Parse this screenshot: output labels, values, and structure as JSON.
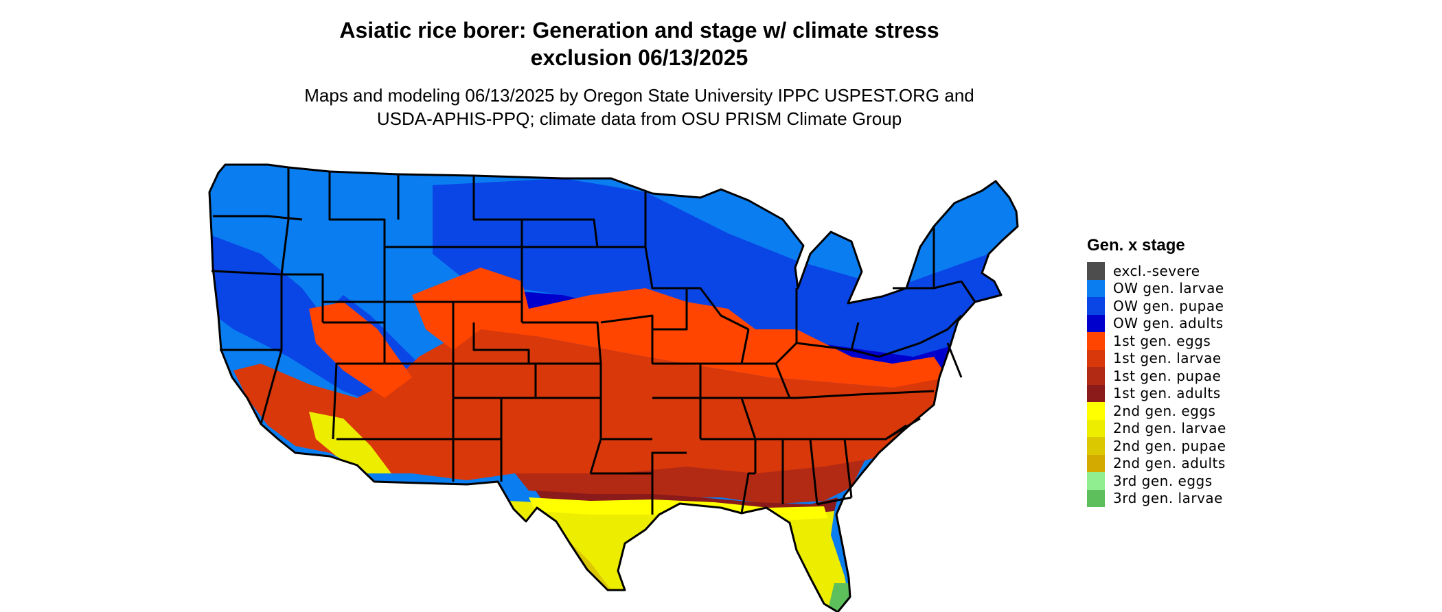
{
  "title_line1": "Asiatic rice borer: Generation and stage w/ climate stress",
  "title_line2": "exclusion 06/13/2025",
  "subtitle_line1": "Maps and modeling 06/13/2025 by Oregon State University IPPC USPEST.ORG and",
  "subtitle_line2": "USDA-APHIS-PPQ; climate data from OSU PRISM Climate Group",
  "legend": {
    "title": "Gen. x stage",
    "items": [
      {
        "label": "excl.-severe",
        "color": "#4d4d4d"
      },
      {
        "label": "OW gen. larvae",
        "color": "#0a7df0"
      },
      {
        "label": "OW gen. pupae",
        "color": "#0a46e6"
      },
      {
        "label": "OW gen. adults",
        "color": "#0000cc"
      },
      {
        "label": "1st gen. eggs",
        "color": "#ff4500"
      },
      {
        "label": "1st gen. larvae",
        "color": "#d9380a"
      },
      {
        "label": "1st gen. pupae",
        "color": "#b32a14"
      },
      {
        "label": "1st gen. adults",
        "color": "#8b1a1a"
      },
      {
        "label": "2nd gen. eggs",
        "color": "#ffff00"
      },
      {
        "label": "2nd gen. larvae",
        "color": "#eded00"
      },
      {
        "label": "2nd gen. pupae",
        "color": "#dcc800"
      },
      {
        "label": "2nd gen. adults",
        "color": "#d2aa00"
      },
      {
        "label": "3rd gen. eggs",
        "color": "#90ee90"
      },
      {
        "label": "3rd gen. larvae",
        "color": "#5cbf5c"
      }
    ]
  }
}
